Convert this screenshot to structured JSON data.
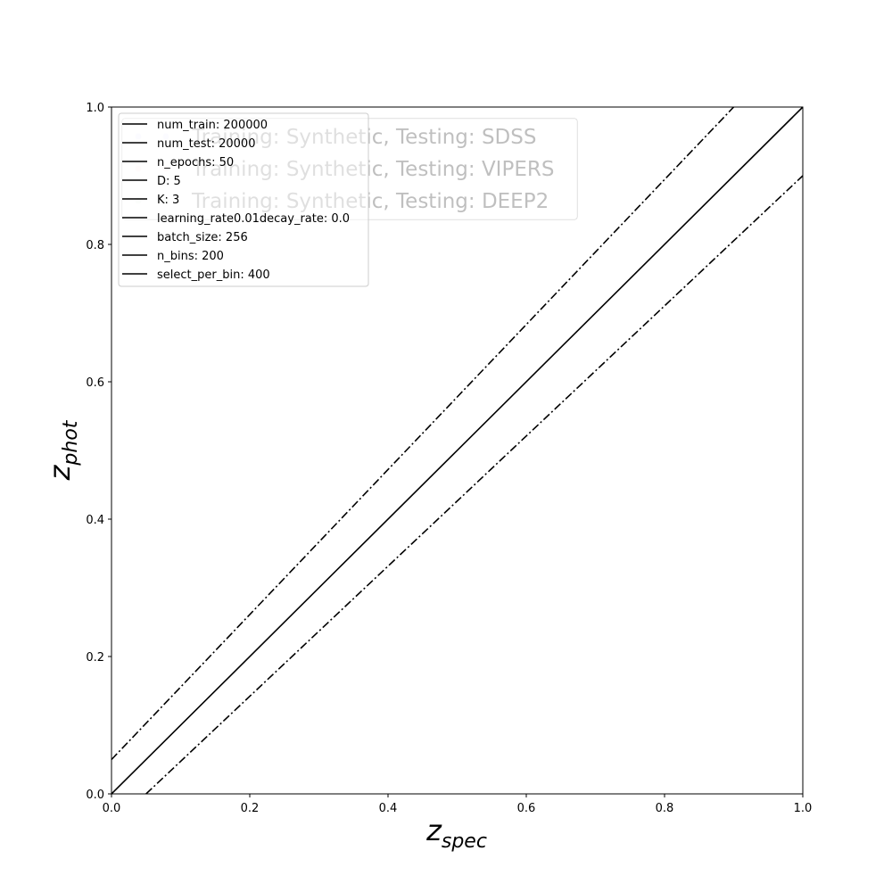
{
  "chart_data": {
    "type": "line",
    "title": "",
    "xlabel": {
      "base": "z",
      "sub": "spec"
    },
    "ylabel": {
      "base": "z",
      "sub": "phot"
    },
    "xlim": [
      0.0,
      1.0
    ],
    "ylim": [
      0.0,
      1.0
    ],
    "xticks": [
      "0.0",
      "0.2",
      "0.4",
      "0.6",
      "0.8",
      "1.0"
    ],
    "yticks": [
      "0.0",
      "0.2",
      "0.4",
      "0.6",
      "0.8",
      "1.0"
    ],
    "grid": false,
    "lines": [
      {
        "style": "solid",
        "color": "#000000",
        "points": [
          [
            0.0,
            0.0
          ],
          [
            1.0,
            1.0
          ]
        ]
      },
      {
        "style": "dashdot",
        "color": "#000000",
        "points": [
          [
            0.0,
            0.05
          ],
          [
            0.9,
            1.0
          ]
        ]
      },
      {
        "style": "dashdot",
        "color": "#000000",
        "points": [
          [
            0.05,
            0.0
          ],
          [
            1.0,
            0.9
          ]
        ]
      }
    ],
    "legend_hyperparameters": {
      "placement": "top-left",
      "entries": [
        "num_train: 200000",
        "num_test: 20000",
        "n_epochs: 50",
        "D: 5",
        "K: 3",
        "learning_rate0.01decay_rate: 0.0",
        "batch_size: 256",
        "n_bins: 200",
        "select_per_bin: 400"
      ]
    },
    "legend_datasets": {
      "placement": "top-left",
      "entries": [
        {
          "label": "Training: Synthetic, Testing: SDSS",
          "color": "#6666ff",
          "marker": "circle"
        },
        {
          "label": "Training: Synthetic, Testing: VIPERS",
          "color": "#ff6666",
          "marker": "circle"
        },
        {
          "label": "Training: Synthetic, Testing: DEEP2",
          "color": "#66aa66",
          "marker": "circle"
        }
      ]
    }
  }
}
